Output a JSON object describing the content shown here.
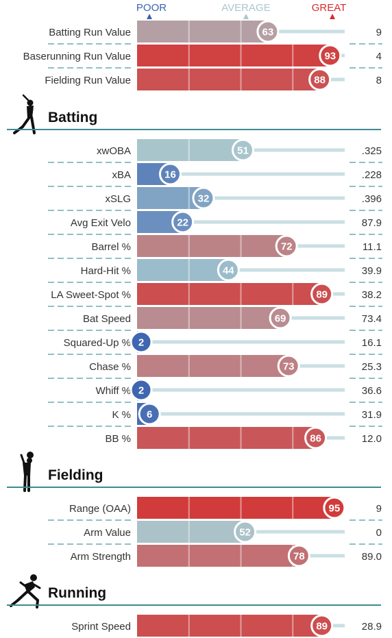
{
  "chart_data": {
    "type": "bar",
    "title": "",
    "xlim": [
      0,
      100
    ],
    "scale": {
      "poor": {
        "label": "POOR",
        "color": "#3b62b0"
      },
      "average": {
        "label": "AVERAGE",
        "color": "#a8c8cf"
      },
      "great": {
        "label": "GREAT",
        "color": "#d62b2b"
      }
    },
    "groups": [
      {
        "heading": "",
        "icon": "",
        "rows": [
          {
            "label": "Batting Run Value",
            "percentile": 63,
            "value": "9"
          },
          {
            "label": "Baserunning Run Value",
            "percentile": 93,
            "value": "4"
          },
          {
            "label": "Fielding Run Value",
            "percentile": 88,
            "value": "8"
          }
        ]
      },
      {
        "heading": "Batting",
        "icon": "batter-icon",
        "rows": [
          {
            "label": "xwOBA",
            "percentile": 51,
            "value": ".325"
          },
          {
            "label": "xBA",
            "percentile": 16,
            "value": ".228"
          },
          {
            "label": "xSLG",
            "percentile": 32,
            "value": ".396"
          },
          {
            "label": "Avg Exit Velo",
            "percentile": 22,
            "value": "87.9"
          },
          {
            "label": "Barrel %",
            "percentile": 72,
            "value": "11.1"
          },
          {
            "label": "Hard-Hit %",
            "percentile": 44,
            "value": "39.9"
          },
          {
            "label": "LA Sweet-Spot %",
            "percentile": 89,
            "value": "38.2"
          },
          {
            "label": "Bat Speed",
            "percentile": 69,
            "value": "73.4"
          },
          {
            "label": "Squared-Up %",
            "percentile": 2,
            "value": "16.1"
          },
          {
            "label": "Chase %",
            "percentile": 73,
            "value": "25.3"
          },
          {
            "label": "Whiff %",
            "percentile": 2,
            "value": "36.6"
          },
          {
            "label": "K %",
            "percentile": 6,
            "value": "31.9"
          },
          {
            "label": "BB %",
            "percentile": 86,
            "value": "12.0"
          }
        ]
      },
      {
        "heading": "Fielding",
        "icon": "fielder-icon",
        "rows": [
          {
            "label": "Range (OAA)",
            "percentile": 95,
            "value": "9"
          },
          {
            "label": "Arm Value",
            "percentile": 52,
            "value": "0"
          },
          {
            "label": "Arm Strength",
            "percentile": 78,
            "value": "89.0"
          }
        ]
      },
      {
        "heading": "Running",
        "icon": "runner-icon",
        "rows": [
          {
            "label": "Sprint Speed",
            "percentile": 89,
            "value": "28.9"
          }
        ]
      }
    ]
  }
}
